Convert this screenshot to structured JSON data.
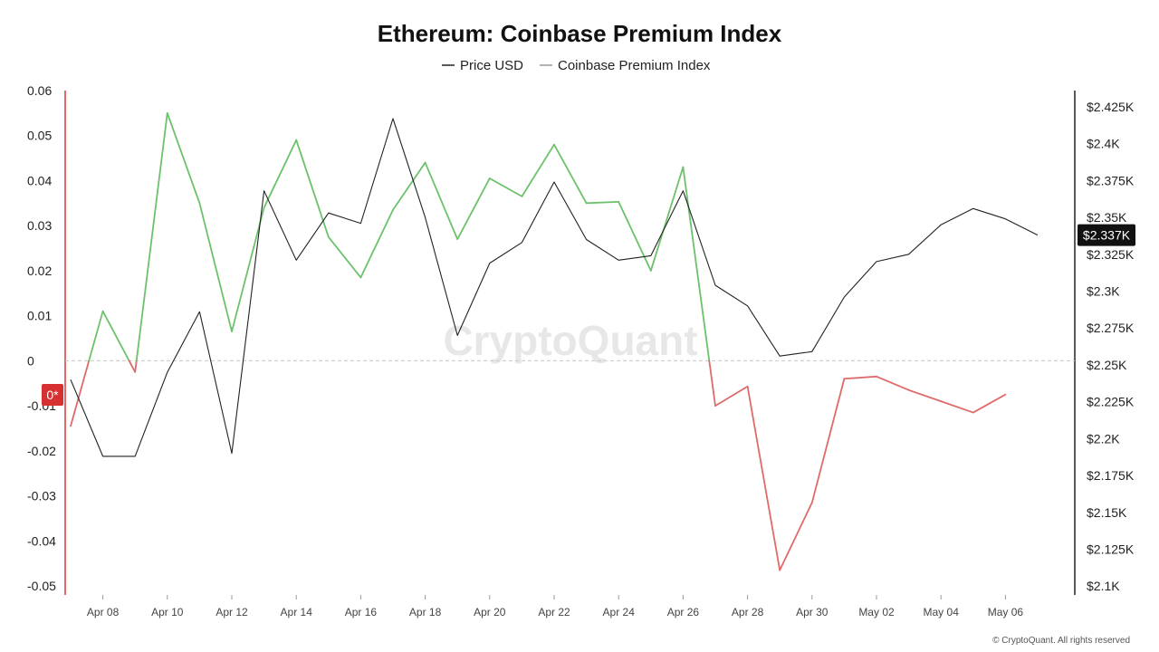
{
  "colors": {
    "price_line": "#222222",
    "premium_positive": "#6cc26a",
    "premium_negative": "#e06a6a",
    "left_axis": "#e06a6a",
    "zero_line": "#c8c8c8",
    "badge_right": "#111111",
    "badge_left": "#d63031"
  },
  "watermark": "CryptoQuant",
  "footer": "© CryptoQuant. All rights reserved",
  "chart_data": {
    "type": "line",
    "title": "Ethereum: Coinbase Premium Index",
    "legend": [
      "Price USD",
      "Coinbase Premium Index"
    ],
    "legend_position": "top-center",
    "x": [
      "Apr 07",
      "Apr 08",
      "Apr 09",
      "Apr 10",
      "Apr 11",
      "Apr 12",
      "Apr 13",
      "Apr 14",
      "Apr 15",
      "Apr 16",
      "Apr 17",
      "Apr 18",
      "Apr 19",
      "Apr 20",
      "Apr 21",
      "Apr 22",
      "Apr 23",
      "Apr 24",
      "Apr 25",
      "Apr 26",
      "Apr 27",
      "Apr 28",
      "Apr 29",
      "Apr 30",
      "May 01",
      "May 02",
      "May 03",
      "May 04",
      "May 05",
      "May 06",
      "May 07"
    ],
    "x_tick_labels": [
      "Apr 08",
      "Apr 10",
      "Apr 12",
      "Apr 14",
      "Apr 16",
      "Apr 18",
      "Apr 20",
      "Apr 22",
      "Apr 24",
      "Apr 26",
      "Apr 28",
      "Apr 30",
      "May 02",
      "May 04",
      "May 06"
    ],
    "series": [
      {
        "name": "Coinbase Premium Index",
        "axis": "left",
        "values": [
          -0.0145,
          0.011,
          -0.0025,
          0.055,
          0.035,
          0.0065,
          0.034,
          0.049,
          0.0275,
          0.0185,
          0.0335,
          0.044,
          0.027,
          0.0405,
          0.0365,
          0.048,
          0.035,
          0.0353,
          0.02,
          0.043,
          -0.01,
          -0.0057,
          -0.0465,
          -0.0315,
          -0.004,
          -0.0035,
          -0.0065,
          -0.009,
          -0.0115,
          -0.0075,
          null
        ]
      },
      {
        "name": "Price USD",
        "axis": "right",
        "values": [
          2240,
          2188,
          2188,
          2245,
          2286,
          2190,
          2368,
          2321,
          2353,
          2346,
          2417,
          2350,
          2270,
          2319,
          2333,
          2374,
          2335,
          2321,
          2324,
          2368,
          2304,
          2290,
          2256,
          2259,
          2296,
          2320,
          2325,
          2345,
          2356,
          2349,
          2338
        ]
      }
    ],
    "y_left": {
      "ticks": [
        0.06,
        0.05,
        0.04,
        0.03,
        0.02,
        0.01,
        0,
        -0.01,
        -0.02,
        -0.03,
        -0.04,
        -0.05
      ],
      "range": [
        -0.052,
        0.06
      ]
    },
    "y_right": {
      "tick_values": [
        2425,
        2400,
        2375,
        2350,
        2325,
        2300,
        2275,
        2250,
        2225,
        2200,
        2175,
        2150,
        2125,
        2100
      ],
      "tick_labels": [
        "$2.425K",
        "$2.4K",
        "$2.375K",
        "$2.35K",
        "$2.325K",
        "$2.3K",
        "$2.275K",
        "$2.25K",
        "$2.225K",
        "$2.2K",
        "$2.175K",
        "$2.15K",
        "$2.125K",
        "$2.1K"
      ],
      "range": [
        2094,
        2436
      ]
    },
    "badges": {
      "current_price": "$2.337K",
      "left_zero": "0*"
    },
    "zero_reference_line": true,
    "grid": false
  }
}
